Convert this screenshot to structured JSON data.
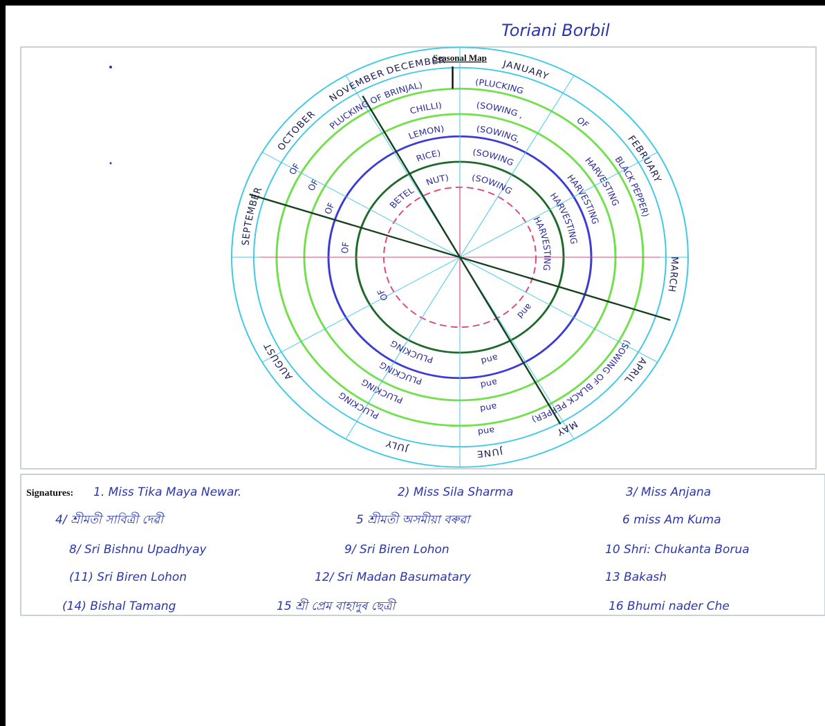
{
  "header": {
    "title": "Toriani Borbil"
  },
  "map": {
    "title": "Seasonal Map",
    "months": [
      "JANUARY",
      "FEBRUARY",
      "MARCH",
      "APRIL",
      "MAY",
      "JUNE",
      "JULY",
      "AUGUST",
      "SEPTEMBER",
      "OCTOBER",
      "NOVEMBER",
      "DECEMBER"
    ],
    "ring_labels": [
      "(PLUCKING",
      "OF",
      "BLACK PEPPER)",
      "(SOWING OF BLACK PEPPER)",
      "PLUCKING OF BRINJAL)",
      "OF",
      "PLUCKING",
      "and",
      "CHILLI)",
      "(SOWING ,",
      "HARVESTING",
      "OF",
      "PLUCKING",
      "and",
      "LEMON)",
      "(SOWING,",
      "HARVESTING",
      "OF",
      "PLUCKING",
      "and",
      "RICE)",
      "(SOWING",
      "HARVESTING",
      "OF",
      "PLUCKING",
      "and",
      "BETEL",
      "NUT)",
      "(SOWING",
      "HARVESTING",
      "and",
      "OF"
    ]
  },
  "signatures": {
    "label": "Signatures:",
    "rows": [
      [
        "1. Miss Tika Maya Newar.",
        "2) Miss Sila Sharma",
        "3/ Miss Anjana"
      ],
      [
        "4/ শ্ৰীমতী সাবিত্ৰী দেৱী",
        "5 শ্ৰীমতী অসমীয়া বৰুৱা",
        "6 miss Am Kuma"
      ],
      [
        "8/ Sri Bishnu Upadhyay",
        "9/ Sri Biren Lohon",
        "10 Shri: Chukanta Borua"
      ],
      [
        "(11) Sri Biren Lohon",
        "12/ Sri Madan Basumatary",
        "13 Bakash"
      ],
      [
        "(14) Bishal Tamang",
        "15 শ্ৰী প্ৰেম বাহাদুৰ ছেত্ৰী",
        "16 Bhumi nader Che"
      ]
    ]
  }
}
